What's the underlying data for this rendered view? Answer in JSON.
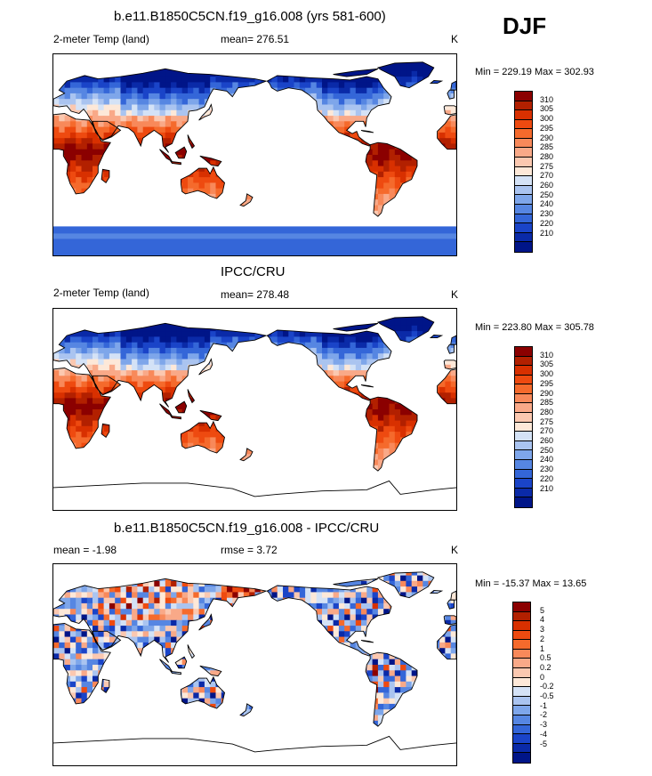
{
  "season": "DJF",
  "panels": [
    {
      "title": "b.e11.B1850C5CN.f19_g16.008 (yrs 581-600)",
      "left_label": "2-meter Temp (land)",
      "mean_label": "mean= 276.51",
      "rmse_label": "",
      "units": "K",
      "minmax": "Min = 229.19 Max = 302.93",
      "scale": "abs",
      "antarctica": true
    },
    {
      "title": "IPCC/CRU",
      "left_label": "2-meter Temp (land)",
      "mean_label": "mean= 278.48",
      "rmse_label": "",
      "units": "K",
      "minmax": "Min = 223.80 Max = 305.78",
      "scale": "abs",
      "antarctica": false
    },
    {
      "title": "b.e11.B1850C5CN.f19_g16.008 - IPCC/CRU",
      "left_label": "mean =  -1.98",
      "mean_label": "rmse =    3.72",
      "rmse_label": "",
      "units": "K",
      "minmax": "Min = -15.37 Max =  13.65",
      "scale": "diff",
      "antarctica": false
    }
  ],
  "colorbars": {
    "abs": {
      "labels": [
        "310",
        "305",
        "300",
        "295",
        "290",
        "285",
        "280",
        "275",
        "270",
        "260",
        "250",
        "240",
        "230",
        "220",
        "210"
      ],
      "colors": [
        "#8b0000",
        "#b22000",
        "#d83000",
        "#ee4a10",
        "#f56a2c",
        "#f8895a",
        "#f9a988",
        "#fbc8b0",
        "#fde8d8",
        "#d4e2f6",
        "#aac4f0",
        "#7ea6ea",
        "#5686e2",
        "#3466d8",
        "#1a44c8",
        "#0a2aa8",
        "#001588"
      ]
    },
    "diff": {
      "labels": [
        "5",
        "4",
        "3",
        "2",
        "1",
        "0.5",
        "0.2",
        "0",
        "-0.2",
        "-0.5",
        "-1",
        "-2",
        "-3",
        "-4",
        "-5"
      ],
      "colors": [
        "#8b0000",
        "#b22000",
        "#d83000",
        "#ee4a10",
        "#f56a2c",
        "#f8895a",
        "#f9a988",
        "#fbc8b0",
        "#fde8d8",
        "#d4e2f6",
        "#aac4f0",
        "#7ea6ea",
        "#5686e2",
        "#3466d8",
        "#1a44c8",
        "#0a2aa8",
        "#001588"
      ]
    }
  }
}
